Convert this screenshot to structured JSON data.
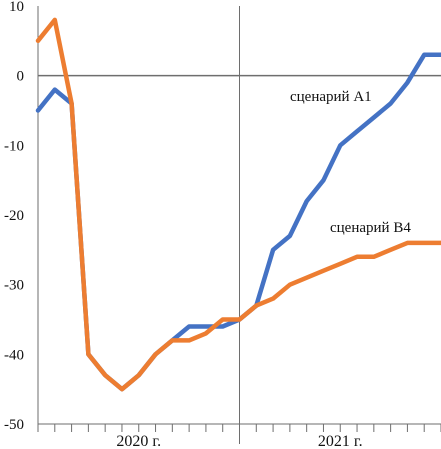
{
  "chart_data": {
    "type": "line",
    "title": "",
    "xlabel": "",
    "ylabel": "",
    "ylim": [
      -50,
      10
    ],
    "yticks": [
      10,
      0,
      -10,
      -20,
      -30,
      -40,
      -50
    ],
    "x_groups": [
      {
        "label": "2020 г.",
        "start": 0,
        "end": 12
      },
      {
        "label": "2021 г.",
        "start": 12,
        "end": 24
      }
    ],
    "divider_x": 12,
    "zero_line": true,
    "colors": {
      "scenario_a1": "#4472C4",
      "scenario_b4": "#ED7D31",
      "axis": "#6e6e6e"
    },
    "series": [
      {
        "key": "scenario_a1",
        "name": "сценарий А1",
        "x": [
          0,
          1,
          2,
          3,
          4,
          5,
          6,
          7,
          8,
          9,
          10,
          11,
          12,
          13,
          14,
          15,
          16,
          17,
          18,
          19,
          20,
          21,
          22,
          23,
          24
        ],
        "values": [
          -5,
          -2,
          -4,
          -40,
          -43,
          -45,
          -43,
          -40,
          -38,
          -36,
          -36,
          -36,
          -35,
          -33,
          -25,
          -23,
          -18,
          -15,
          -10,
          -8,
          -6,
          -4,
          -1,
          3,
          3
        ]
      },
      {
        "key": "scenario_b4",
        "name": "сценарий В4",
        "x": [
          0,
          1,
          2,
          3,
          4,
          5,
          6,
          7,
          8,
          9,
          10,
          11,
          12,
          13,
          14,
          15,
          16,
          17,
          18,
          19,
          20,
          21,
          22,
          23,
          24
        ],
        "values": [
          5,
          8,
          -4,
          -40,
          -43,
          -45,
          -43,
          -40,
          -38,
          -38,
          -37,
          -35,
          -35,
          -33,
          -32,
          -30,
          -29,
          -28,
          -27,
          -26,
          -26,
          -25,
          -24,
          -24,
          -24
        ]
      }
    ]
  }
}
